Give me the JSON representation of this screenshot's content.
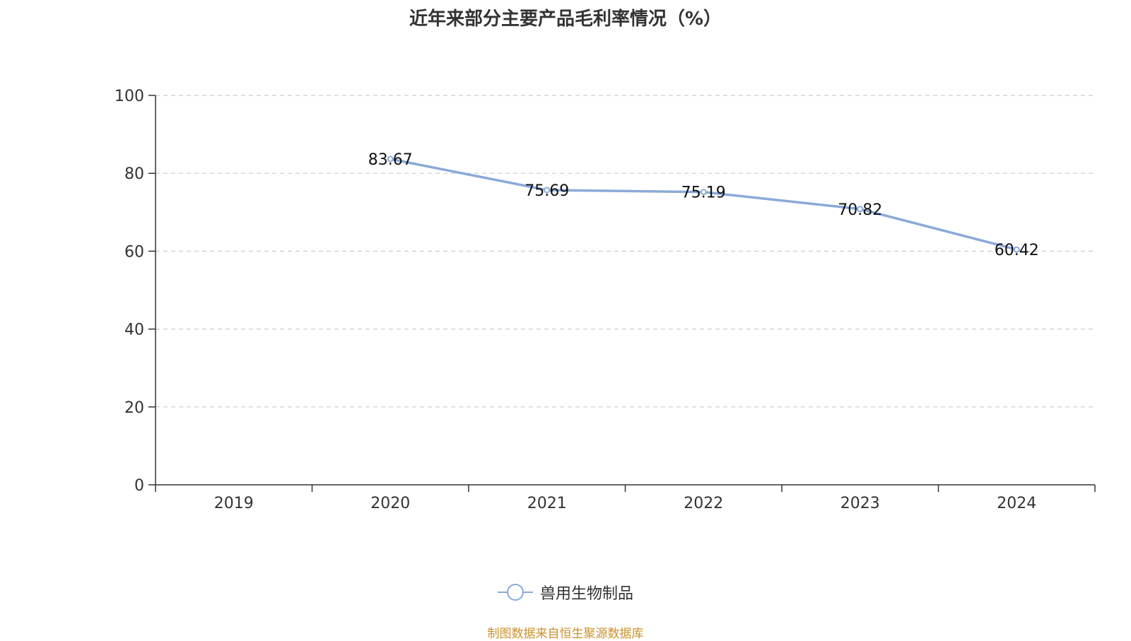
{
  "chart_data": {
    "type": "line",
    "title": "近年来部分主要产品毛利率情况（%）",
    "categories": [
      "2019",
      "2020",
      "2021",
      "2022",
      "2023",
      "2024"
    ],
    "series": [
      {
        "name": "兽用生物制品",
        "values": [
          null,
          83.67,
          75.69,
          75.19,
          70.82,
          60.42
        ],
        "labels": [
          "",
          "83.67",
          "75.69",
          "75.19",
          "70.82",
          "60.42"
        ]
      }
    ],
    "ylim": [
      0,
      100
    ],
    "yticks": [
      "0",
      "20",
      "40",
      "60",
      "80",
      "100"
    ],
    "grid": true,
    "legend_position": "bottom"
  },
  "colors": {
    "line": "#8aaad8",
    "axis": "#333333",
    "grid": "#cccccc",
    "source": "#c8922a"
  },
  "source_note": "制图数据来自恒生聚源数据库"
}
